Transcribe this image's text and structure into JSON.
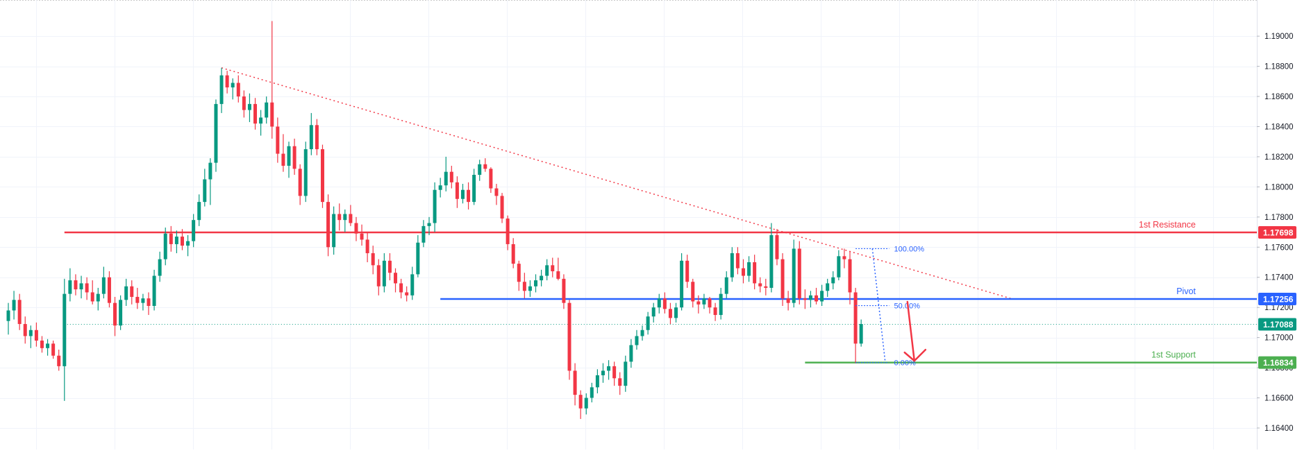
{
  "chart_data": {
    "type": "candlestick",
    "symbol": "EURUSD",
    "y_axis": {
      "position": "right",
      "ticks": [
        "1.19000",
        "1.18800",
        "1.18600",
        "1.18400",
        "1.18200",
        "1.18000",
        "1.17800",
        "1.17600",
        "1.17400",
        "1.17200",
        "1.17000",
        "1.16800",
        "1.16600",
        "1.16400"
      ],
      "range": [
        1.1634,
        1.1924
      ]
    },
    "grid": true,
    "colors": {
      "up": "#089981",
      "down": "#f23645",
      "resistance": "#f23645",
      "pivot": "#2962ff",
      "support": "#4caf50",
      "trendline": "#f23645",
      "fib": "#2962ff",
      "current_price": "#089981"
    },
    "candles": [
      [
        1.1711,
        1.1723,
        1.1702,
        1.1718
      ],
      [
        1.1718,
        1.1731,
        1.1712,
        1.1725
      ],
      [
        1.1725,
        1.1729,
        1.1705,
        1.1709
      ],
      [
        1.1709,
        1.1714,
        1.1696,
        1.1701
      ],
      [
        1.1701,
        1.1708,
        1.1693,
        1.1705
      ],
      [
        1.1705,
        1.171,
        1.1694,
        1.1698
      ],
      [
        1.1698,
        1.1701,
        1.169,
        1.1693
      ],
      [
        1.1693,
        1.1699,
        1.1688,
        1.1696
      ],
      [
        1.1696,
        1.1698,
        1.1686,
        1.1688
      ],
      [
        1.1688,
        1.1692,
        1.1678,
        1.1681
      ],
      [
        1.1681,
        1.1739,
        1.1658,
        1.1729
      ],
      [
        1.1729,
        1.1746,
        1.1724,
        1.1738
      ],
      [
        1.1738,
        1.1742,
        1.1728,
        1.1732
      ],
      [
        1.1732,
        1.1741,
        1.1726,
        1.1736
      ],
      [
        1.1736,
        1.174,
        1.1725,
        1.173
      ],
      [
        1.173,
        1.1738,
        1.1722,
        1.1724
      ],
      [
        1.1724,
        1.1733,
        1.1718,
        1.1729
      ],
      [
        1.1729,
        1.1747,
        1.1726,
        1.174
      ],
      [
        1.174,
        1.1744,
        1.172,
        1.1723
      ],
      [
        1.1723,
        1.1727,
        1.1701,
        1.1708
      ],
      [
        1.1708,
        1.1728,
        1.1705,
        1.1725
      ],
      [
        1.1725,
        1.1739,
        1.1721,
        1.1734
      ],
      [
        1.1734,
        1.1738,
        1.1722,
        1.1727
      ],
      [
        1.1727,
        1.1733,
        1.1719,
        1.1723
      ],
      [
        1.1723,
        1.1729,
        1.1718,
        1.1726
      ],
      [
        1.1726,
        1.173,
        1.1715,
        1.1721
      ],
      [
        1.1721,
        1.1745,
        1.1718,
        1.1741
      ],
      [
        1.1741,
        1.1757,
        1.1737,
        1.1752
      ],
      [
        1.1752,
        1.1773,
        1.1748,
        1.1769
      ],
      [
        1.1769,
        1.1774,
        1.1757,
        1.1762
      ],
      [
        1.1762,
        1.1771,
        1.1756,
        1.1767
      ],
      [
        1.1767,
        1.1772,
        1.1758,
        1.1761
      ],
      [
        1.1761,
        1.1768,
        1.1754,
        1.1764
      ],
      [
        1.1764,
        1.1782,
        1.176,
        1.1778
      ],
      [
        1.1778,
        1.1795,
        1.1774,
        1.179
      ],
      [
        1.179,
        1.1812,
        1.1787,
        1.1805
      ],
      [
        1.1805,
        1.1819,
        1.1788,
        1.1816
      ],
      [
        1.1816,
        1.1858,
        1.181,
        1.1855
      ],
      [
        1.1855,
        1.1879,
        1.1849,
        1.1874
      ],
      [
        1.1874,
        1.1877,
        1.1862,
        1.1866
      ],
      [
        1.1866,
        1.1872,
        1.1858,
        1.1869
      ],
      [
        1.1869,
        1.1874,
        1.1856,
        1.186
      ],
      [
        1.186,
        1.1864,
        1.1846,
        1.1851
      ],
      [
        1.1851,
        1.1862,
        1.1843,
        1.1855
      ],
      [
        1.1855,
        1.1859,
        1.1838,
        1.1842
      ],
      [
        1.1842,
        1.1851,
        1.1834,
        1.1846
      ],
      [
        1.1846,
        1.186,
        1.1842,
        1.1856
      ],
      [
        1.1856,
        1.191,
        1.1832,
        1.184
      ],
      [
        1.184,
        1.1846,
        1.1816,
        1.1822
      ],
      [
        1.1822,
        1.1835,
        1.181,
        1.1814
      ],
      [
        1.1814,
        1.183,
        1.1806,
        1.1827
      ],
      [
        1.1827,
        1.1832,
        1.1808,
        1.1812
      ],
      [
        1.1812,
        1.1815,
        1.1788,
        1.1794
      ],
      [
        1.1794,
        1.183,
        1.179,
        1.1825
      ],
      [
        1.1825,
        1.1849,
        1.1821,
        1.1841
      ],
      [
        1.1841,
        1.1845,
        1.1821,
        1.1825
      ],
      [
        1.1825,
        1.1828,
        1.1786,
        1.179
      ],
      [
        1.179,
        1.1795,
        1.1754,
        1.176
      ],
      [
        1.176,
        1.1787,
        1.1755,
        1.1782
      ],
      [
        1.1782,
        1.1789,
        1.1771,
        1.1778
      ],
      [
        1.1778,
        1.1785,
        1.177,
        1.1782
      ],
      [
        1.1782,
        1.1788,
        1.1774,
        1.1776
      ],
      [
        1.1776,
        1.178,
        1.1764,
        1.1769
      ],
      [
        1.1769,
        1.1775,
        1.1761,
        1.1765
      ],
      [
        1.1765,
        1.177,
        1.175,
        1.1756
      ],
      [
        1.1756,
        1.1761,
        1.1742,
        1.1748
      ],
      [
        1.1748,
        1.1752,
        1.1728,
        1.1734
      ],
      [
        1.1734,
        1.1756,
        1.173,
        1.1751
      ],
      [
        1.1751,
        1.1756,
        1.1738,
        1.1743
      ],
      [
        1.1743,
        1.1746,
        1.173,
        1.1736
      ],
      [
        1.1736,
        1.1739,
        1.1726,
        1.173
      ],
      [
        1.173,
        1.1734,
        1.1724,
        1.1728
      ],
      [
        1.1728,
        1.1747,
        1.1725,
        1.1742
      ],
      [
        1.1742,
        1.1768,
        1.174,
        1.1763
      ],
      [
        1.1763,
        1.1778,
        1.176,
        1.1774
      ],
      [
        1.1774,
        1.178,
        1.1768,
        1.1776
      ],
      [
        1.1776,
        1.1803,
        1.177,
        1.1798
      ],
      [
        1.1798,
        1.1806,
        1.1793,
        1.1801
      ],
      [
        1.1801,
        1.182,
        1.1797,
        1.181
      ],
      [
        1.181,
        1.1814,
        1.1799,
        1.1803
      ],
      [
        1.1803,
        1.1807,
        1.1786,
        1.1792
      ],
      [
        1.1792,
        1.1802,
        1.1789,
        1.1798
      ],
      [
        1.1798,
        1.1803,
        1.1785,
        1.179
      ],
      [
        1.179,
        1.1812,
        1.1788,
        1.1808
      ],
      [
        1.1808,
        1.1818,
        1.1804,
        1.1815
      ],
      [
        1.1815,
        1.1819,
        1.181,
        1.1812
      ],
      [
        1.1812,
        1.1813,
        1.1796,
        1.1799
      ],
      [
        1.1799,
        1.1802,
        1.1788,
        1.1794
      ],
      [
        1.1794,
        1.1796,
        1.1776,
        1.1779
      ],
      [
        1.1779,
        1.1781,
        1.1758,
        1.1762
      ],
      [
        1.1762,
        1.1766,
        1.1746,
        1.1749
      ],
      [
        1.1749,
        1.1751,
        1.1731,
        1.1737
      ],
      [
        1.1737,
        1.1743,
        1.1726,
        1.1731
      ],
      [
        1.1731,
        1.1738,
        1.1727,
        1.1734
      ],
      [
        1.1734,
        1.1742,
        1.173,
        1.1738
      ],
      [
        1.1738,
        1.1745,
        1.1734,
        1.1741
      ],
      [
        1.1741,
        1.1752,
        1.1738,
        1.1748
      ],
      [
        1.1748,
        1.1753,
        1.174,
        1.1744
      ],
      [
        1.1744,
        1.1753,
        1.1738,
        1.1739
      ],
      [
        1.1739,
        1.1742,
        1.1719,
        1.1723
      ],
      [
        1.1723,
        1.1725,
        1.1672,
        1.1678
      ],
      [
        1.1678,
        1.1683,
        1.1655,
        1.1662
      ],
      [
        1.1662,
        1.1665,
        1.1646,
        1.1653
      ],
      [
        1.1653,
        1.1663,
        1.1649,
        1.166
      ],
      [
        1.166,
        1.167,
        1.1657,
        1.1667
      ],
      [
        1.1667,
        1.1679,
        1.1663,
        1.1675
      ],
      [
        1.1675,
        1.1683,
        1.167,
        1.1678
      ],
      [
        1.1678,
        1.1685,
        1.1672,
        1.1681
      ],
      [
        1.1681,
        1.1684,
        1.1668,
        1.1673
      ],
      [
        1.1673,
        1.1677,
        1.1662,
        1.1668
      ],
      [
        1.1668,
        1.1688,
        1.1664,
        1.1684
      ],
      [
        1.1684,
        1.1699,
        1.168,
        1.1695
      ],
      [
        1.1695,
        1.1705,
        1.1692,
        1.1701
      ],
      [
        1.1701,
        1.1708,
        1.1698,
        1.1705
      ],
      [
        1.1705,
        1.1717,
        1.1702,
        1.1714
      ],
      [
        1.1714,
        1.1723,
        1.171,
        1.172
      ],
      [
        1.172,
        1.1729,
        1.1716,
        1.1726
      ],
      [
        1.1726,
        1.173,
        1.1716,
        1.1719
      ],
      [
        1.1719,
        1.1723,
        1.1709,
        1.1713
      ],
      [
        1.1713,
        1.1723,
        1.171,
        1.172
      ],
      [
        1.172,
        1.1756,
        1.1718,
        1.1751
      ],
      [
        1.1751,
        1.1755,
        1.1733,
        1.1737
      ],
      [
        1.1737,
        1.1739,
        1.172,
        1.1724
      ],
      [
        1.1724,
        1.1728,
        1.1716,
        1.1722
      ],
      [
        1.1722,
        1.1729,
        1.1719,
        1.1726
      ],
      [
        1.1726,
        1.1727,
        1.1716,
        1.172
      ],
      [
        1.172,
        1.1723,
        1.1711,
        1.1715
      ],
      [
        1.1715,
        1.1733,
        1.1712,
        1.1729
      ],
      [
        1.1729,
        1.1744,
        1.1726,
        1.174
      ],
      [
        1.174,
        1.176,
        1.1737,
        1.1756
      ],
      [
        1.1756,
        1.176,
        1.1742,
        1.1746
      ],
      [
        1.1746,
        1.1752,
        1.1736,
        1.1741
      ],
      [
        1.1741,
        1.1754,
        1.1737,
        1.175
      ],
      [
        1.175,
        1.1755,
        1.1732,
        1.1736
      ],
      [
        1.1736,
        1.174,
        1.173,
        1.1734
      ],
      [
        1.1734,
        1.1739,
        1.1728,
        1.1733
      ],
      [
        1.1733,
        1.1776,
        1.173,
        1.1768
      ],
      [
        1.1768,
        1.1772,
        1.1748,
        1.1752
      ],
      [
        1.1752,
        1.1756,
        1.1721,
        1.1726
      ],
      [
        1.1726,
        1.1731,
        1.1718,
        1.1723
      ],
      [
        1.1723,
        1.1765,
        1.172,
        1.1759
      ],
      [
        1.1759,
        1.1764,
        1.1722,
        1.1726
      ],
      [
        1.1726,
        1.1732,
        1.1719,
        1.1725
      ],
      [
        1.1725,
        1.1731,
        1.172,
        1.1728
      ],
      [
        1.1728,
        1.1733,
        1.1722,
        1.1724
      ],
      [
        1.1724,
        1.1735,
        1.1721,
        1.1731
      ],
      [
        1.1731,
        1.1739,
        1.1727,
        1.1736
      ],
      [
        1.1736,
        1.1744,
        1.1732,
        1.174
      ],
      [
        1.174,
        1.1758,
        1.1738,
        1.1754
      ],
      [
        1.1754,
        1.1759,
        1.1746,
        1.1752
      ],
      [
        1.1752,
        1.1757,
        1.1722,
        1.173
      ],
      [
        1.173,
        1.1733,
        1.1683,
        1.1696
      ],
      [
        1.1696,
        1.1712,
        1.1694,
        1.1709
      ]
    ],
    "levels": [
      {
        "name": "1st Resistance",
        "value": 1.17698,
        "label": "1.17698",
        "color": "#f23645"
      },
      {
        "name": "Pivot",
        "value": 1.17256,
        "label": "1.17256",
        "color": "#2962ff"
      },
      {
        "name": "1st Support",
        "value": 1.16834,
        "label": "1.16834",
        "color": "#4caf50"
      }
    ],
    "current_price": {
      "value": 1.17088,
      "label": "1.17088",
      "color": "#089981"
    },
    "fibonacci": [
      {
        "label": "100.00%",
        "value": 1.1759
      },
      {
        "label": "50.00%",
        "value": 1.17212
      },
      {
        "label": "0.00%",
        "value": 1.16834
      }
    ],
    "trendline": {
      "from_index": 38,
      "from_price": 1.1879,
      "to_index": 179,
      "to_price": 1.17256
    },
    "projection_arrow": {
      "index": 160,
      "from_price": 1.17256,
      "to_price": 1.16855,
      "direction": "down",
      "color": "#f23645"
    }
  }
}
